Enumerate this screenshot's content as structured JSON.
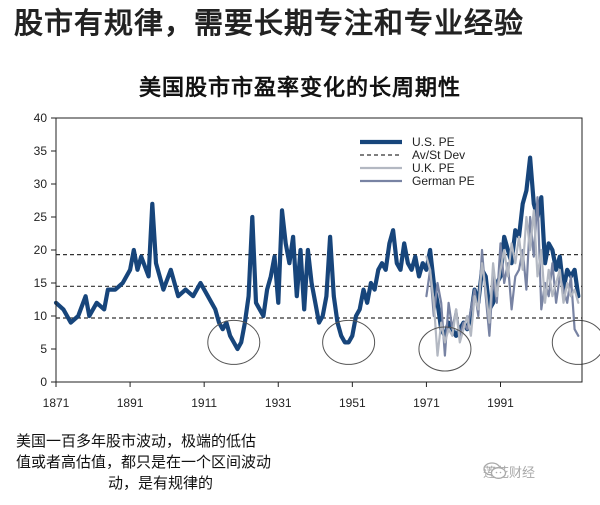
{
  "page": {
    "header_title": "股市有规律，需要长期专注和专业经验",
    "chart_title": "美国股市市盈率变化的长周期性",
    "caption_lines": [
      "美国一百多年股市波动，极端的低估",
      "值或者高估值，都只是在一个区间波动",
      "动，是有规律的"
    ],
    "watermark": "莲花财经"
  },
  "chart_data": {
    "type": "line",
    "title": "美国股市市盈率变化的长周期性",
    "xlim": [
      1871,
      2013
    ],
    "ylim": [
      0,
      40
    ],
    "x_ticks": [
      1871,
      1891,
      1911,
      1931,
      1951,
      1971,
      1991
    ],
    "y_ticks": [
      0,
      5,
      10,
      15,
      20,
      25,
      30,
      35,
      40
    ],
    "grid": false,
    "legend_position": "top-right",
    "legend": [
      "U.S. PE",
      "Av/St Dev",
      "U.K. PE",
      "German PE"
    ],
    "reference_lines": [
      {
        "name": "Av/St Dev",
        "values": [
          19.3,
          14.5,
          9.7
        ]
      }
    ],
    "series": [
      {
        "name": "U.S. PE",
        "color": "#17457b",
        "points": [
          [
            1871,
            12
          ],
          [
            1873,
            11
          ],
          [
            1875,
            9
          ],
          [
            1877,
            10
          ],
          [
            1879,
            13
          ],
          [
            1880,
            10
          ],
          [
            1882,
            12
          ],
          [
            1884,
            11
          ],
          [
            1885,
            14
          ],
          [
            1887,
            14
          ],
          [
            1889,
            15
          ],
          [
            1891,
            17
          ],
          [
            1892,
            20
          ],
          [
            1893,
            17
          ],
          [
            1894,
            19
          ],
          [
            1896,
            16
          ],
          [
            1897,
            27
          ],
          [
            1898,
            18
          ],
          [
            1900,
            14
          ],
          [
            1902,
            17
          ],
          [
            1904,
            13
          ],
          [
            1906,
            14
          ],
          [
            1908,
            13
          ],
          [
            1910,
            15
          ],
          [
            1912,
            13
          ],
          [
            1913,
            12
          ],
          [
            1914,
            11
          ],
          [
            1915,
            9
          ],
          [
            1916,
            8
          ],
          [
            1917,
            9
          ],
          [
            1918,
            7
          ],
          [
            1919,
            6
          ],
          [
            1920,
            5
          ],
          [
            1921,
            6
          ],
          [
            1922,
            9
          ],
          [
            1923,
            13
          ],
          [
            1924,
            25
          ],
          [
            1925,
            12
          ],
          [
            1927,
            10
          ],
          [
            1928,
            14
          ],
          [
            1929,
            16
          ],
          [
            1930,
            19
          ],
          [
            1931,
            12
          ],
          [
            1932,
            26
          ],
          [
            1933,
            21
          ],
          [
            1934,
            18
          ],
          [
            1935,
            22
          ],
          [
            1936,
            13
          ],
          [
            1937,
            20
          ],
          [
            1938,
            11
          ],
          [
            1939,
            20
          ],
          [
            1940,
            15
          ],
          [
            1941,
            12
          ],
          [
            1942,
            9
          ],
          [
            1943,
            10
          ],
          [
            1944,
            13
          ],
          [
            1945,
            22
          ],
          [
            1946,
            13
          ],
          [
            1947,
            9
          ],
          [
            1948,
            7
          ],
          [
            1949,
            6
          ],
          [
            1950,
            6
          ],
          [
            1951,
            7
          ],
          [
            1952,
            10
          ],
          [
            1953,
            11
          ],
          [
            1954,
            14
          ],
          [
            1955,
            12
          ],
          [
            1956,
            15
          ],
          [
            1957,
            14
          ],
          [
            1958,
            17
          ],
          [
            1959,
            18
          ],
          [
            1960,
            17
          ],
          [
            1961,
            21
          ],
          [
            1962,
            23
          ],
          [
            1963,
            18
          ],
          [
            1964,
            17
          ],
          [
            1965,
            21
          ],
          [
            1966,
            18
          ],
          [
            1967,
            17
          ],
          [
            1968,
            19
          ],
          [
            1969,
            16
          ],
          [
            1970,
            18
          ],
          [
            1971,
            17
          ],
          [
            1972,
            20
          ],
          [
            1973,
            15
          ],
          [
            1974,
            12
          ],
          [
            1975,
            8
          ],
          [
            1976,
            7
          ],
          [
            1977,
            9
          ],
          [
            1978,
            8
          ],
          [
            1979,
            7
          ],
          [
            1980,
            8
          ],
          [
            1981,
            9
          ],
          [
            1982,
            8
          ],
          [
            1983,
            10
          ],
          [
            1984,
            14
          ],
          [
            1985,
            12
          ],
          [
            1986,
            17
          ],
          [
            1987,
            16
          ],
          [
            1988,
            11
          ],
          [
            1989,
            12
          ],
          [
            1990,
            15
          ],
          [
            1991,
            16
          ],
          [
            1992,
            22
          ],
          [
            1993,
            20
          ],
          [
            1994,
            18
          ],
          [
            1995,
            23
          ],
          [
            1996,
            22
          ],
          [
            1997,
            27
          ],
          [
            1998,
            29
          ],
          [
            1999,
            34
          ],
          [
            2000,
            27
          ],
          [
            2001,
            25
          ],
          [
            2002,
            28
          ],
          [
            2003,
            18
          ],
          [
            2004,
            21
          ],
          [
            2005,
            20
          ],
          [
            2006,
            17
          ],
          [
            2007,
            19
          ],
          [
            2008,
            14
          ],
          [
            2009,
            17
          ],
          [
            2010,
            16
          ],
          [
            2011,
            17
          ],
          [
            2012,
            13
          ]
        ]
      },
      {
        "name": "U.K. PE",
        "color": "#b3b8c2",
        "points": [
          [
            1971,
            19
          ],
          [
            1972,
            17
          ],
          [
            1973,
            12
          ],
          [
            1974,
            4
          ],
          [
            1975,
            9
          ],
          [
            1976,
            6
          ],
          [
            1977,
            8
          ],
          [
            1978,
            7
          ],
          [
            1979,
            11
          ],
          [
            1980,
            6
          ],
          [
            1981,
            8
          ],
          [
            1982,
            10
          ],
          [
            1983,
            7
          ],
          [
            1984,
            13
          ],
          [
            1985,
            11
          ],
          [
            1986,
            18
          ],
          [
            1987,
            14
          ],
          [
            1988,
            9
          ],
          [
            1989,
            18
          ],
          [
            1990,
            13
          ],
          [
            1991,
            17
          ],
          [
            1992,
            20
          ],
          [
            1993,
            16
          ],
          [
            1994,
            21
          ],
          [
            1995,
            18
          ],
          [
            1996,
            22
          ],
          [
            1997,
            17
          ],
          [
            1998,
            25
          ],
          [
            1999,
            20
          ],
          [
            2000,
            26
          ],
          [
            2001,
            16
          ],
          [
            2002,
            20
          ],
          [
            2003,
            12
          ],
          [
            2004,
            17
          ],
          [
            2005,
            13
          ],
          [
            2006,
            15
          ],
          [
            2007,
            17
          ],
          [
            2008,
            12
          ],
          [
            2009,
            15
          ],
          [
            2010,
            13
          ],
          [
            2011,
            14
          ],
          [
            2012,
            12
          ]
        ]
      },
      {
        "name": "German PE",
        "color": "#7883a3",
        "points": [
          [
            1971,
            13
          ],
          [
            1972,
            17
          ],
          [
            1973,
            10
          ],
          [
            1974,
            15
          ],
          [
            1975,
            12
          ],
          [
            1976,
            4
          ],
          [
            1977,
            12
          ],
          [
            1978,
            8
          ],
          [
            1979,
            11
          ],
          [
            1980,
            7
          ],
          [
            1981,
            9
          ],
          [
            1982,
            8
          ],
          [
            1983,
            11
          ],
          [
            1984,
            14
          ],
          [
            1985,
            10
          ],
          [
            1986,
            20
          ],
          [
            1987,
            13
          ],
          [
            1988,
            7
          ],
          [
            1989,
            16
          ],
          [
            1990,
            12
          ],
          [
            1991,
            21
          ],
          [
            1992,
            15
          ],
          [
            1993,
            18
          ],
          [
            1994,
            11
          ],
          [
            1995,
            16
          ],
          [
            1996,
            17
          ],
          [
            1997,
            20
          ],
          [
            1998,
            14
          ],
          [
            1999,
            25
          ],
          [
            2000,
            19
          ],
          [
            2001,
            28
          ],
          [
            2002,
            11
          ],
          [
            2003,
            15
          ],
          [
            2004,
            13
          ],
          [
            2005,
            18
          ],
          [
            2006,
            12
          ],
          [
            2007,
            16
          ],
          [
            2008,
            14
          ],
          [
            2009,
            12
          ],
          [
            2010,
            16
          ],
          [
            2011,
            8
          ],
          [
            2012,
            7
          ]
        ]
      }
    ],
    "annotations": [
      {
        "type": "circle",
        "x": 1919,
        "y": 6
      },
      {
        "type": "circle",
        "x": 1950,
        "y": 6
      },
      {
        "type": "circle",
        "x": 1976,
        "y": 5
      },
      {
        "type": "circle",
        "x": 2012,
        "y": 6
      }
    ]
  }
}
